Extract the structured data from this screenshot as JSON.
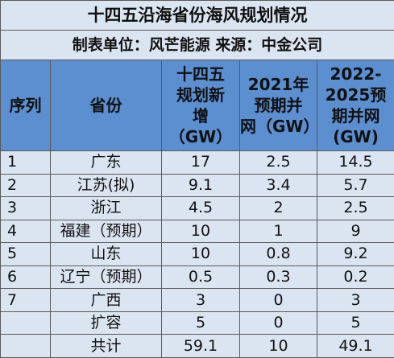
{
  "title": "十四五沿海省份海风规划情况",
  "subtitle": "制表单位：风芒能源 来源：中金公司",
  "table": {
    "header": [
      [
        "序列"
      ],
      [
        "省份"
      ],
      [
        "十四五",
        "规划新",
        "增",
        "（GW）"
      ],
      [
        "2021年",
        "预期并",
        "网（GW）"
      ],
      [
        "2022-",
        "2025预",
        "期并网",
        "(GW)"
      ]
    ],
    "rows": [
      [
        "1",
        "广东",
        "17",
        "2.5",
        "14.5"
      ],
      [
        "2",
        "江苏(拟)",
        "9.1",
        "3.4",
        "5.7"
      ],
      [
        "3",
        "浙江",
        "4.5",
        "2",
        "2.5"
      ],
      [
        "4",
        "福建（预期）",
        "10",
        "1",
        "9"
      ],
      [
        "5",
        "山东",
        "10",
        "0.8",
        "9.2"
      ],
      [
        "6",
        "辽宁（预期）",
        "0.5",
        "0.3",
        "0.2"
      ],
      [
        "7",
        "广西",
        "3",
        "0",
        "3"
      ],
      [
        null,
        "扩容",
        "5",
        "0",
        "5"
      ],
      [
        null,
        "共计",
        "59.1",
        "10",
        "49.1"
      ]
    ]
  }
}
